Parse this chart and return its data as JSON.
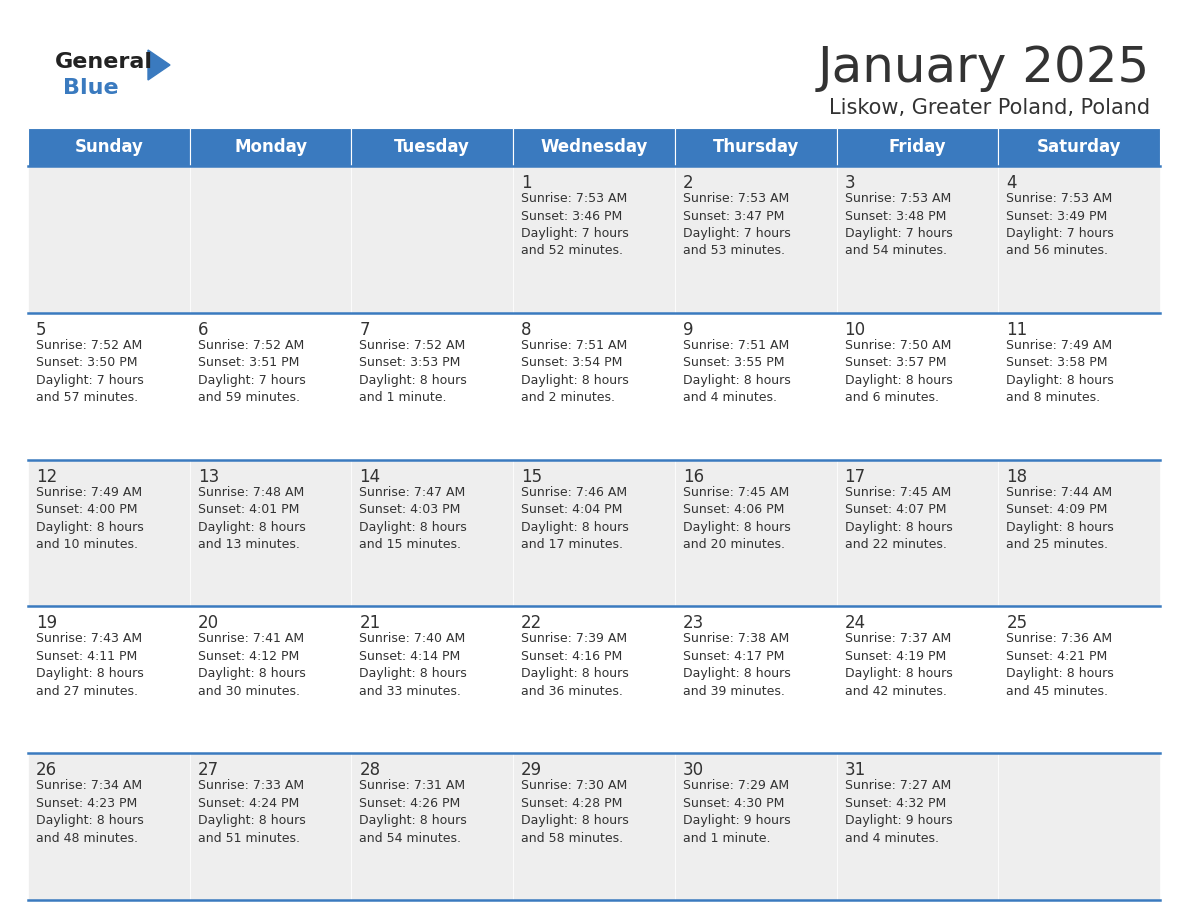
{
  "title": "January 2025",
  "subtitle": "Liskow, Greater Poland, Poland",
  "days_of_week": [
    "Sunday",
    "Monday",
    "Tuesday",
    "Wednesday",
    "Thursday",
    "Friday",
    "Saturday"
  ],
  "header_bg": "#3a7abf",
  "header_text": "#ffffff",
  "cell_bg_odd": "#eeeeee",
  "cell_bg_even": "#ffffff",
  "text_color": "#333333",
  "day_num_color": "#333333",
  "border_color": "#3a7abf",
  "logo_general_color": "#222222",
  "logo_blue_color": "#3a7abf",
  "logo_triangle_color": "#3a7abf",
  "calendar_data": [
    [
      null,
      null,
      null,
      {
        "day": 1,
        "sunrise": "7:53 AM",
        "sunset": "3:46 PM",
        "daylight": "7 hours\nand 52 minutes."
      },
      {
        "day": 2,
        "sunrise": "7:53 AM",
        "sunset": "3:47 PM",
        "daylight": "7 hours\nand 53 minutes."
      },
      {
        "day": 3,
        "sunrise": "7:53 AM",
        "sunset": "3:48 PM",
        "daylight": "7 hours\nand 54 minutes."
      },
      {
        "day": 4,
        "sunrise": "7:53 AM",
        "sunset": "3:49 PM",
        "daylight": "7 hours\nand 56 minutes."
      }
    ],
    [
      {
        "day": 5,
        "sunrise": "7:52 AM",
        "sunset": "3:50 PM",
        "daylight": "7 hours\nand 57 minutes."
      },
      {
        "day": 6,
        "sunrise": "7:52 AM",
        "sunset": "3:51 PM",
        "daylight": "7 hours\nand 59 minutes."
      },
      {
        "day": 7,
        "sunrise": "7:52 AM",
        "sunset": "3:53 PM",
        "daylight": "8 hours\nand 1 minute."
      },
      {
        "day": 8,
        "sunrise": "7:51 AM",
        "sunset": "3:54 PM",
        "daylight": "8 hours\nand 2 minutes."
      },
      {
        "day": 9,
        "sunrise": "7:51 AM",
        "sunset": "3:55 PM",
        "daylight": "8 hours\nand 4 minutes."
      },
      {
        "day": 10,
        "sunrise": "7:50 AM",
        "sunset": "3:57 PM",
        "daylight": "8 hours\nand 6 minutes."
      },
      {
        "day": 11,
        "sunrise": "7:49 AM",
        "sunset": "3:58 PM",
        "daylight": "8 hours\nand 8 minutes."
      }
    ],
    [
      {
        "day": 12,
        "sunrise": "7:49 AM",
        "sunset": "4:00 PM",
        "daylight": "8 hours\nand 10 minutes."
      },
      {
        "day": 13,
        "sunrise": "7:48 AM",
        "sunset": "4:01 PM",
        "daylight": "8 hours\nand 13 minutes."
      },
      {
        "day": 14,
        "sunrise": "7:47 AM",
        "sunset": "4:03 PM",
        "daylight": "8 hours\nand 15 minutes."
      },
      {
        "day": 15,
        "sunrise": "7:46 AM",
        "sunset": "4:04 PM",
        "daylight": "8 hours\nand 17 minutes."
      },
      {
        "day": 16,
        "sunrise": "7:45 AM",
        "sunset": "4:06 PM",
        "daylight": "8 hours\nand 20 minutes."
      },
      {
        "day": 17,
        "sunrise": "7:45 AM",
        "sunset": "4:07 PM",
        "daylight": "8 hours\nand 22 minutes."
      },
      {
        "day": 18,
        "sunrise": "7:44 AM",
        "sunset": "4:09 PM",
        "daylight": "8 hours\nand 25 minutes."
      }
    ],
    [
      {
        "day": 19,
        "sunrise": "7:43 AM",
        "sunset": "4:11 PM",
        "daylight": "8 hours\nand 27 minutes."
      },
      {
        "day": 20,
        "sunrise": "7:41 AM",
        "sunset": "4:12 PM",
        "daylight": "8 hours\nand 30 minutes."
      },
      {
        "day": 21,
        "sunrise": "7:40 AM",
        "sunset": "4:14 PM",
        "daylight": "8 hours\nand 33 minutes."
      },
      {
        "day": 22,
        "sunrise": "7:39 AM",
        "sunset": "4:16 PM",
        "daylight": "8 hours\nand 36 minutes."
      },
      {
        "day": 23,
        "sunrise": "7:38 AM",
        "sunset": "4:17 PM",
        "daylight": "8 hours\nand 39 minutes."
      },
      {
        "day": 24,
        "sunrise": "7:37 AM",
        "sunset": "4:19 PM",
        "daylight": "8 hours\nand 42 minutes."
      },
      {
        "day": 25,
        "sunrise": "7:36 AM",
        "sunset": "4:21 PM",
        "daylight": "8 hours\nand 45 minutes."
      }
    ],
    [
      {
        "day": 26,
        "sunrise": "7:34 AM",
        "sunset": "4:23 PM",
        "daylight": "8 hours\nand 48 minutes."
      },
      {
        "day": 27,
        "sunrise": "7:33 AM",
        "sunset": "4:24 PM",
        "daylight": "8 hours\nand 51 minutes."
      },
      {
        "day": 28,
        "sunrise": "7:31 AM",
        "sunset": "4:26 PM",
        "daylight": "8 hours\nand 54 minutes."
      },
      {
        "day": 29,
        "sunrise": "7:30 AM",
        "sunset": "4:28 PM",
        "daylight": "8 hours\nand 58 minutes."
      },
      {
        "day": 30,
        "sunrise": "7:29 AM",
        "sunset": "4:30 PM",
        "daylight": "9 hours\nand 1 minute."
      },
      {
        "day": 31,
        "sunrise": "7:27 AM",
        "sunset": "4:32 PM",
        "daylight": "9 hours\nand 4 minutes."
      },
      null
    ]
  ],
  "title_fontsize": 36,
  "subtitle_fontsize": 15,
  "header_fontsize": 12,
  "day_num_fontsize": 12,
  "cell_text_fontsize": 9
}
